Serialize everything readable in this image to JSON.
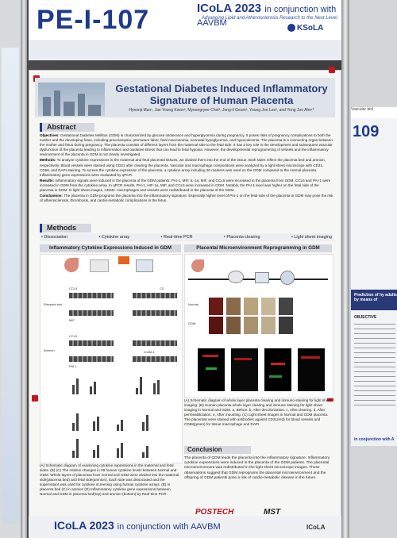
{
  "banner": {
    "poster_id": "PE-I-107",
    "conference": "ICoLA 2023",
    "conference_suffix": "in conjunction with AAVBM",
    "tagline": "Advancing Lipid and Atherosclerosis Research to the Next Level",
    "society": "KSoLA"
  },
  "title": {
    "line1": "Gestational Diabetes Induced Inflammatory",
    "line2": "Signature of Human Placenta",
    "authors": "Hyeonji Mun¹, Jae Young Kwon², Myeongryee Choi³, Jong-il Geum², Young Joo Lee², and Yong Joo Ahn¹*"
  },
  "abstract": {
    "heading": "Abstract",
    "objectives_label": "Objectives:",
    "objectives": "Gestational Diabetes Mellitus (GDM) is characterized by glucose intolerance and hyperglycemia during pregnancy. It poses risks of pregnancy complications to both the mother and the developing fetus, including preeclampsia, premature labor, fetal macrosomia, neonatal hypoglycemia, and hypocalcemia. The placenta is a connecting organ between the mother and fetus during pregnancy. The placenta consists of different layers from the maternal side to the fetal side. It has a key role in the development and subsequent vascular dysfunction of the placenta leading to inflammation and oxidative stress that can lead to fetal hypoxia. However, the developmental reprogramming of vessels and the inflammatory environment of the placenta in GDM is not clearly investigated.",
    "methods_label": "Methods:",
    "methods": "To analyze cytokine expressions in the maternal and fetal placental tissues, we divided them into the end of the tissue. Both sides reflect the placenta bed and amnion, respectively. Blood vessels were stained using CD31 after clearing the placenta. Vascular and macrophage compositions were analyzed by a light-sheet microscope with CD31, CD68, and DAPI staining. To screen the cytokine expression of the placenta, a cytokine array including 36 markers was used on the GDM compared to the normal placenta. Inflammatory gene expressions were evaluated by qPCR.",
    "results_label": "Results:",
    "results": "Inflammatory signals were induced in the placenta of the GDM patients. PAI-1, MIF, IL-1a, MIF, and CCL5 were increased in the placenta from GDM. CCL5 and PAI-1 were increased in GDM from the cytokine array. In qPCR results, PAI-1, HIF-1a, MIF, and CCL5 were increased in GDM. Notably, the PAI-1 level was higher on the fetal side of the placenta in GDM. In light sheet images, CD68+ macrophages and vessels were redistributed in the placenta of the GDM.",
    "conclusions_label": "Conclusions:",
    "conclusions": "The placenta in GDM programs the placenta into the inflammatory signature. Especially higher level of PAI-1 on the fetal side of the placenta in GDM may pose the risk of atherosclerosis, thrombosis, and cardio-metabolic complications in the fetus."
  },
  "methods": {
    "heading": "Methods",
    "items": [
      "• Dissociation",
      "• Cytokine array",
      "• Real-time PCR",
      "• Placenta clearing",
      "• Light sheet imaging"
    ]
  },
  "left_panel": {
    "heading": "Inflammatory Cytokine Expressions Induced in GDM",
    "labels": [
      "CCL5",
      "CS",
      "MIF",
      "CCL5",
      "PAI-1",
      "ICAM-1",
      "Placenta bed",
      "Amnion"
    ],
    "caption": "(A) Schematic diagram of examining cytokine expressions in the maternal and fetal sides. (B) (C) The relative changes in 36 human cytokine levels between Normal and GDM. Whole layers of placentas from normal and GDM were divided into the maternal side(placenta bed) and fetal side(amnion). Each side was dissociated and the supernatant was used for cytokine screening using human cytokine arrays. (B) in placenta bed (C) in amnion (D) Inflammatory cytokine gene expressions between Normal and GDM in placenta bed(top) and amnion (bottom) by Real-time PCR."
  },
  "right_panel": {
    "heading": "Placental Microenvironment Reprogramming in GDM",
    "labels": [
      "Normal",
      "GDM"
    ],
    "caption": "(A) Schematic diagram of whole layer placenta clearing and immuno-staining for light sheet imaging. (B) Human placenta whole layer clearing and immune staining for light sheet imaging in Normal and GDM. a, Before. b, After decolorization. c, After clearing. d, After permeabilization. e, After mounting. (C) Light sheet images in Normal and GDM placenta. The placentas were stained with antibodies against CD31(red) for blood vessels and CD68(green) for tissue macrophage and DAPI."
  },
  "conclusion": {
    "heading": "Conclusion",
    "text": "The placenta of GDM leads the placenta into the inflammatory signature. Inflammatory cytokine expressions were induced in the placenta of the GDM patients. The placental microenvironment was redistributed in the light sheet microscope images. These observations suggest that GDM reprograms the placental microenvironment and the offspring of GDM patients pose a risk of cardio-metabolic disease in the future."
  },
  "sponsors": [
    "POSTECH",
    "MST"
  ],
  "footer": {
    "conference": "ICoLA 2023",
    "conference_suffix": "in conjunction with AAVBM",
    "society": "ICoLA"
  },
  "neighbor_poster": {
    "number": "109",
    "header": "Vascular biol",
    "blue_band": "Prediction of hy adults by means of",
    "subheading": "OBJECTIVE",
    "bottom_tag": "in conjunction with A"
  },
  "colors": {
    "brand_blue": "#1f3a8a",
    "pin_red": "#c4161c",
    "postech_red": "#b7141f"
  }
}
